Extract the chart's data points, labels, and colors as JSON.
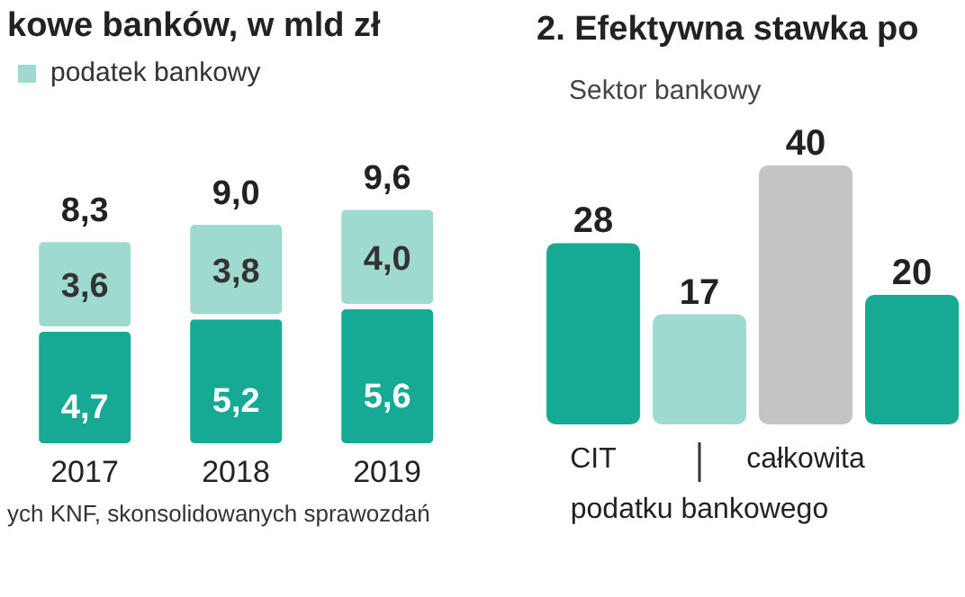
{
  "chart_data": [
    {
      "type": "bar",
      "title": "kowe banków, w mld zł",
      "categories": [
        "2017",
        "2018",
        "2019"
      ],
      "stacked": true,
      "legend": "top left",
      "series": [
        {
          "color": "#16a994",
          "values": [
            4.7,
            5.2,
            5.6
          ],
          "value_labels": [
            "4,7",
            "5,2",
            "5,6"
          ]
        },
        {
          "name": "podatek bankowy",
          "color": "#9fdad0",
          "values": [
            3.6,
            3.8,
            4.0
          ],
          "value_labels": [
            "3,6",
            "3,8",
            "4,0"
          ]
        }
      ],
      "totals": [
        "8,3",
        "9,0",
        "9,6"
      ],
      "annotations": [
        "ych KNF, skonsolidowanych sprawozdań"
      ]
    },
    {
      "type": "bar",
      "title": "2. Efektywna stawka po",
      "subtitle": "Sektor bankowy",
      "categories": [
        "CIT",
        "podatku bankowego",
        "całkowita",
        null
      ],
      "values": [
        28,
        17,
        40,
        20
      ],
      "colors": [
        "#16a994",
        "#9fdad0",
        "#c4c4c4",
        "#16a994"
      ],
      "data_labels": true
    }
  ]
}
